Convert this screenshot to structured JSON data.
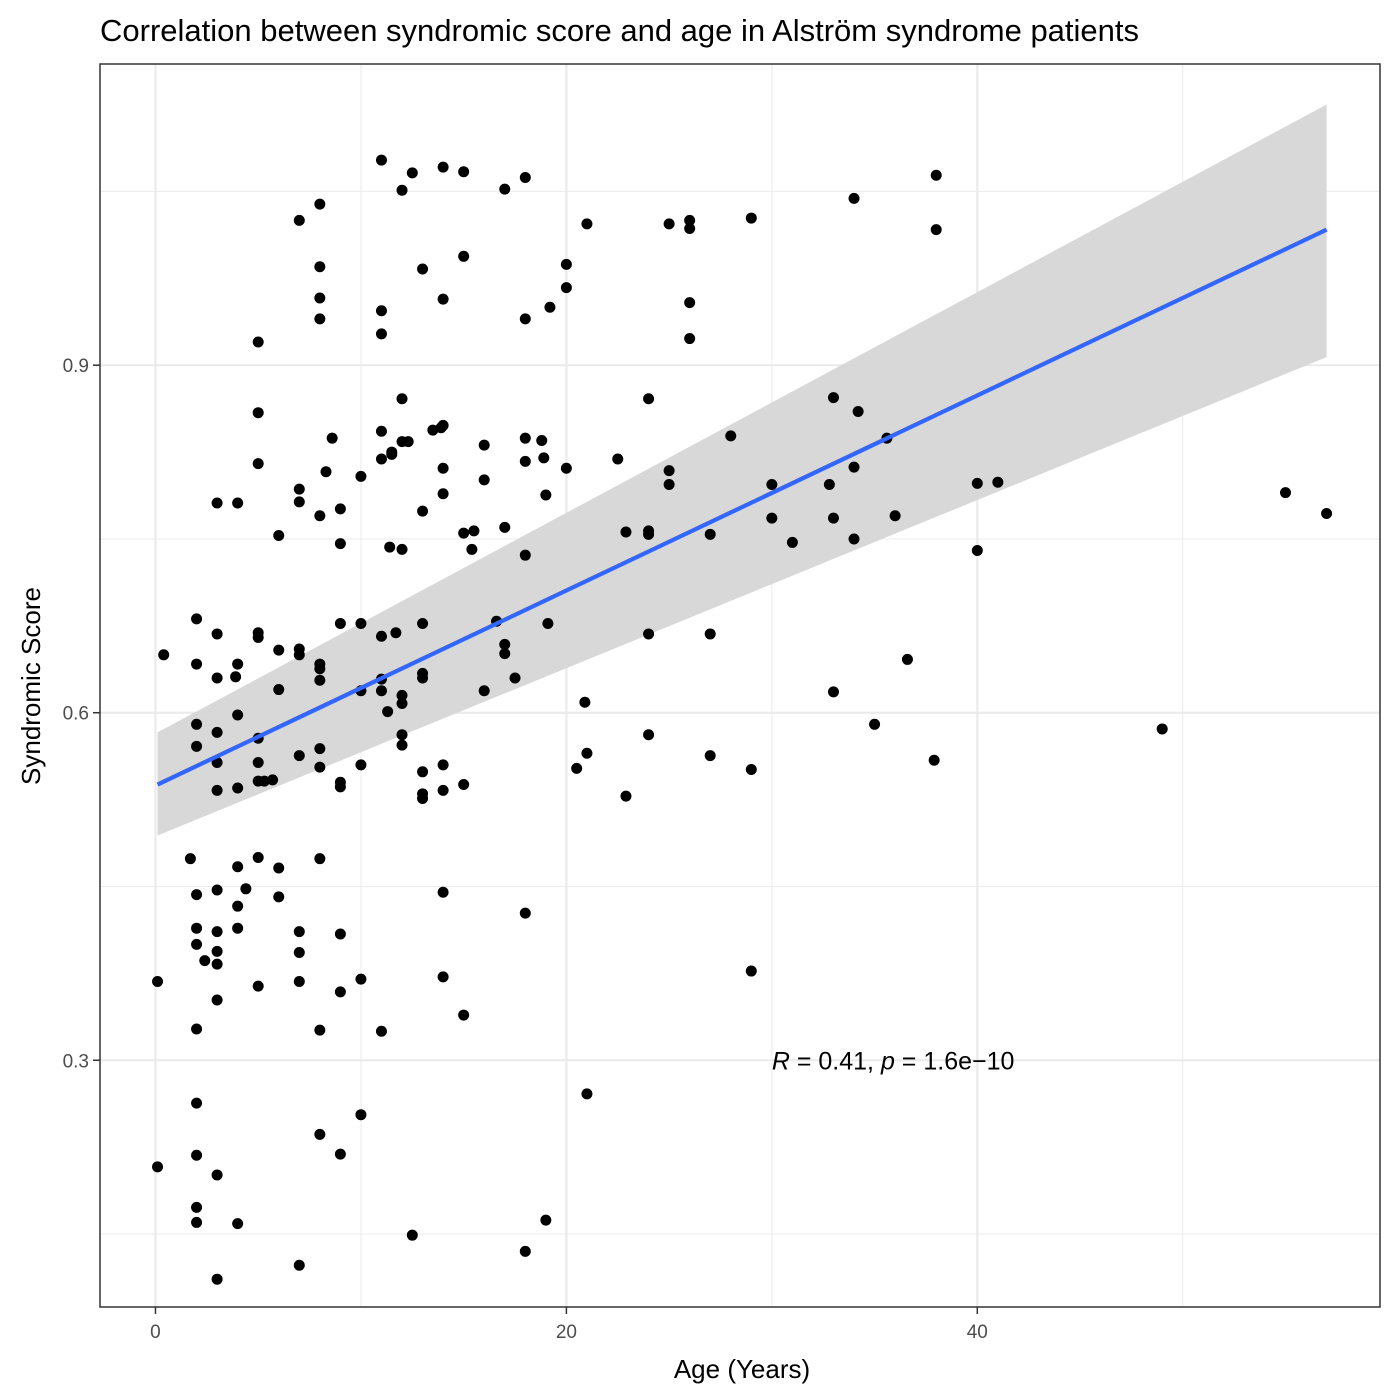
{
  "chart_data": {
    "type": "scatter",
    "title": "Correlation between syndromic score and age in Alström syndrome patients",
    "xlabel": "Age (Years)",
    "ylabel": "Syndromic Score",
    "xlim": [
      -2.7,
      59.6
    ],
    "ylim": [
      0.087,
      1.16
    ],
    "x_ticks": [
      0,
      20,
      40
    ],
    "x_tick_labels": [
      "0",
      "20",
      "40"
    ],
    "y_ticks": [
      0.3,
      0.6,
      0.9
    ],
    "y_tick_labels": [
      "0.3",
      "0.6",
      "0.9"
    ],
    "grid": true,
    "legend": "none",
    "annotation": {
      "r_symbol": "R",
      "r_text": " = 0.41, ",
      "p_symbol": "p",
      "p_text": " = 1.6e−10",
      "x": 30,
      "y": 0.3
    },
    "colors": {
      "points": "#000000",
      "regression_line": "#3366ff",
      "confidence_band": "#d6d6d6",
      "grid": "#ebebeb",
      "panel_border": "#333333"
    },
    "regression": {
      "method": "linear",
      "x_start": 0.1,
      "x_end": 57.0,
      "y_start": 0.538,
      "y_end": 1.017,
      "ci_lower_start": 0.494,
      "ci_upper_start": 0.583,
      "ci_lower_end": 0.907,
      "ci_upper_end": 1.125
    },
    "points": [
      {
        "x": 0.1,
        "y": 0.368
      },
      {
        "x": 0.1,
        "y": 0.208
      },
      {
        "x": 0.4,
        "y": 0.65
      },
      {
        "x": 1.7,
        "y": 0.474
      },
      {
        "x": 2.0,
        "y": 0.681
      },
      {
        "x": 2.0,
        "y": 0.642
      },
      {
        "x": 2.0,
        "y": 0.59
      },
      {
        "x": 2.0,
        "y": 0.571
      },
      {
        "x": 2.0,
        "y": 0.443
      },
      {
        "x": 2.0,
        "y": 0.414
      },
      {
        "x": 2.0,
        "y": 0.4
      },
      {
        "x": 2.0,
        "y": 0.327
      },
      {
        "x": 2.0,
        "y": 0.263
      },
      {
        "x": 2.0,
        "y": 0.218
      },
      {
        "x": 2.0,
        "y": 0.173
      },
      {
        "x": 2.0,
        "y": 0.16
      },
      {
        "x": 2.4,
        "y": 0.386
      },
      {
        "x": 3.0,
        "y": 0.781
      },
      {
        "x": 3.0,
        "y": 0.668
      },
      {
        "x": 3.0,
        "y": 0.63
      },
      {
        "x": 3.0,
        "y": 0.583
      },
      {
        "x": 3.0,
        "y": 0.557
      },
      {
        "x": 3.0,
        "y": 0.533
      },
      {
        "x": 3.0,
        "y": 0.447
      },
      {
        "x": 3.0,
        "y": 0.411
      },
      {
        "x": 3.0,
        "y": 0.394
      },
      {
        "x": 3.0,
        "y": 0.383
      },
      {
        "x": 3.0,
        "y": 0.352
      },
      {
        "x": 3.0,
        "y": 0.201
      },
      {
        "x": 3.0,
        "y": 0.111
      },
      {
        "x": 3.9,
        "y": 0.631
      },
      {
        "x": 4.0,
        "y": 0.781
      },
      {
        "x": 4.0,
        "y": 0.642
      },
      {
        "x": 4.0,
        "y": 0.598
      },
      {
        "x": 4.0,
        "y": 0.535
      },
      {
        "x": 4.0,
        "y": 0.467
      },
      {
        "x": 4.0,
        "y": 0.433
      },
      {
        "x": 4.0,
        "y": 0.414
      },
      {
        "x": 4.0,
        "y": 0.159
      },
      {
        "x": 4.4,
        "y": 0.448
      },
      {
        "x": 5.0,
        "y": 0.92
      },
      {
        "x": 5.0,
        "y": 0.859
      },
      {
        "x": 5.0,
        "y": 0.815
      },
      {
        "x": 5.0,
        "y": 0.669
      },
      {
        "x": 5.0,
        "y": 0.665
      },
      {
        "x": 5.0,
        "y": 0.578
      },
      {
        "x": 5.0,
        "y": 0.557
      },
      {
        "x": 5.0,
        "y": 0.541
      },
      {
        "x": 5.0,
        "y": 0.475
      },
      {
        "x": 5.0,
        "y": 0.364
      },
      {
        "x": 5.3,
        "y": 0.541
      },
      {
        "x": 5.7,
        "y": 0.542
      },
      {
        "x": 6.0,
        "y": 0.753
      },
      {
        "x": 6.0,
        "y": 0.654
      },
      {
        "x": 6.0,
        "y": 0.62
      },
      {
        "x": 6.0,
        "y": 0.466
      },
      {
        "x": 6.0,
        "y": 0.441
      },
      {
        "x": 7.0,
        "y": 1.025
      },
      {
        "x": 7.0,
        "y": 0.793
      },
      {
        "x": 7.0,
        "y": 0.782
      },
      {
        "x": 7.0,
        "y": 0.655
      },
      {
        "x": 7.0,
        "y": 0.65
      },
      {
        "x": 7.0,
        "y": 0.563
      },
      {
        "x": 7.0,
        "y": 0.411
      },
      {
        "x": 7.0,
        "y": 0.393
      },
      {
        "x": 7.0,
        "y": 0.368
      },
      {
        "x": 7.0,
        "y": 0.123
      },
      {
        "x": 8.0,
        "y": 1.039
      },
      {
        "x": 8.0,
        "y": 0.985
      },
      {
        "x": 8.0,
        "y": 0.958
      },
      {
        "x": 8.0,
        "y": 0.94
      },
      {
        "x": 8.0,
        "y": 0.77
      },
      {
        "x": 8.0,
        "y": 0.642
      },
      {
        "x": 8.0,
        "y": 0.638
      },
      {
        "x": 8.0,
        "y": 0.628
      },
      {
        "x": 8.0,
        "y": 0.569
      },
      {
        "x": 8.0,
        "y": 0.553
      },
      {
        "x": 8.0,
        "y": 0.474
      },
      {
        "x": 8.0,
        "y": 0.326
      },
      {
        "x": 8.0,
        "y": 0.236
      },
      {
        "x": 8.3,
        "y": 0.808
      },
      {
        "x": 8.6,
        "y": 0.837
      },
      {
        "x": 9.0,
        "y": 0.776
      },
      {
        "x": 9.0,
        "y": 0.746
      },
      {
        "x": 9.0,
        "y": 0.677
      },
      {
        "x": 9.0,
        "y": 0.54
      },
      {
        "x": 9.0,
        "y": 0.536
      },
      {
        "x": 9.0,
        "y": 0.409
      },
      {
        "x": 9.0,
        "y": 0.359
      },
      {
        "x": 9.0,
        "y": 0.219
      },
      {
        "x": 10.0,
        "y": 0.804
      },
      {
        "x": 10.0,
        "y": 0.677
      },
      {
        "x": 10.0,
        "y": 0.619
      },
      {
        "x": 10.0,
        "y": 0.555
      },
      {
        "x": 10.0,
        "y": 0.37
      },
      {
        "x": 10.0,
        "y": 0.253
      },
      {
        "x": 11.0,
        "y": 1.077
      },
      {
        "x": 11.0,
        "y": 0.947
      },
      {
        "x": 11.0,
        "y": 0.927
      },
      {
        "x": 11.0,
        "y": 0.843
      },
      {
        "x": 11.0,
        "y": 0.819
      },
      {
        "x": 11.0,
        "y": 0.666
      },
      {
        "x": 11.0,
        "y": 0.629
      },
      {
        "x": 11.0,
        "y": 0.619
      },
      {
        "x": 11.0,
        "y": 0.325
      },
      {
        "x": 11.3,
        "y": 0.601
      },
      {
        "x": 11.4,
        "y": 0.743
      },
      {
        "x": 11.5,
        "y": 0.825
      },
      {
        "x": 11.5,
        "y": 0.823
      },
      {
        "x": 11.7,
        "y": 0.669
      },
      {
        "x": 12.0,
        "y": 1.051
      },
      {
        "x": 12.0,
        "y": 0.871
      },
      {
        "x": 12.0,
        "y": 0.834
      },
      {
        "x": 12.0,
        "y": 0.741
      },
      {
        "x": 12.0,
        "y": 0.615
      },
      {
        "x": 12.0,
        "y": 0.608
      },
      {
        "x": 12.0,
        "y": 0.581
      },
      {
        "x": 12.0,
        "y": 0.572
      },
      {
        "x": 12.3,
        "y": 0.834
      },
      {
        "x": 12.5,
        "y": 1.066
      },
      {
        "x": 12.5,
        "y": 0.149
      },
      {
        "x": 13.0,
        "y": 0.983
      },
      {
        "x": 13.0,
        "y": 0.774
      },
      {
        "x": 13.0,
        "y": 0.677
      },
      {
        "x": 13.0,
        "y": 0.634
      },
      {
        "x": 13.0,
        "y": 0.63
      },
      {
        "x": 13.0,
        "y": 0.549
      },
      {
        "x": 13.0,
        "y": 0.53
      },
      {
        "x": 13.0,
        "y": 0.526
      },
      {
        "x": 13.5,
        "y": 0.844
      },
      {
        "x": 13.9,
        "y": 0.846
      },
      {
        "x": 14.0,
        "y": 1.071
      },
      {
        "x": 14.0,
        "y": 0.957
      },
      {
        "x": 14.0,
        "y": 0.848
      },
      {
        "x": 14.0,
        "y": 0.811
      },
      {
        "x": 14.0,
        "y": 0.789
      },
      {
        "x": 14.0,
        "y": 0.555
      },
      {
        "x": 14.0,
        "y": 0.533
      },
      {
        "x": 14.0,
        "y": 0.445
      },
      {
        "x": 14.0,
        "y": 0.372
      },
      {
        "x": 15.0,
        "y": 1.067
      },
      {
        "x": 15.0,
        "y": 0.994
      },
      {
        "x": 15.0,
        "y": 0.755
      },
      {
        "x": 15.0,
        "y": 0.538
      },
      {
        "x": 15.0,
        "y": 0.339
      },
      {
        "x": 15.4,
        "y": 0.741
      },
      {
        "x": 15.5,
        "y": 0.757
      },
      {
        "x": 16.0,
        "y": 0.831
      },
      {
        "x": 16.0,
        "y": 0.801
      },
      {
        "x": 16.0,
        "y": 0.619
      },
      {
        "x": 16.6,
        "y": 0.679
      },
      {
        "x": 17.0,
        "y": 1.052
      },
      {
        "x": 17.0,
        "y": 0.76
      },
      {
        "x": 17.0,
        "y": 0.659
      },
      {
        "x": 17.0,
        "y": 0.651
      },
      {
        "x": 17.5,
        "y": 0.63
      },
      {
        "x": 18.0,
        "y": 1.062
      },
      {
        "x": 18.0,
        "y": 0.94
      },
      {
        "x": 18.0,
        "y": 0.837
      },
      {
        "x": 18.0,
        "y": 0.817
      },
      {
        "x": 18.0,
        "y": 0.736
      },
      {
        "x": 18.0,
        "y": 0.427
      },
      {
        "x": 18.0,
        "y": 0.135
      },
      {
        "x": 18.8,
        "y": 0.835
      },
      {
        "x": 18.9,
        "y": 0.82
      },
      {
        "x": 19.0,
        "y": 0.788
      },
      {
        "x": 19.0,
        "y": 0.162
      },
      {
        "x": 19.1,
        "y": 0.677
      },
      {
        "x": 19.2,
        "y": 0.95
      },
      {
        "x": 20.0,
        "y": 0.987
      },
      {
        "x": 20.0,
        "y": 0.967
      },
      {
        "x": 20.0,
        "y": 0.811
      },
      {
        "x": 20.5,
        "y": 0.552
      },
      {
        "x": 20.9,
        "y": 0.609
      },
      {
        "x": 21.0,
        "y": 1.022
      },
      {
        "x": 21.0,
        "y": 0.565
      },
      {
        "x": 21.0,
        "y": 0.271
      },
      {
        "x": 22.5,
        "y": 0.819
      },
      {
        "x": 22.9,
        "y": 0.756
      },
      {
        "x": 22.9,
        "y": 0.528
      },
      {
        "x": 24.0,
        "y": 0.871
      },
      {
        "x": 24.0,
        "y": 0.757
      },
      {
        "x": 24.0,
        "y": 0.754
      },
      {
        "x": 24.0,
        "y": 0.668
      },
      {
        "x": 24.0,
        "y": 0.581
      },
      {
        "x": 25.0,
        "y": 1.022
      },
      {
        "x": 25.0,
        "y": 0.809
      },
      {
        "x": 25.0,
        "y": 0.797
      },
      {
        "x": 26.0,
        "y": 1.025
      },
      {
        "x": 26.0,
        "y": 1.018
      },
      {
        "x": 26.0,
        "y": 0.954
      },
      {
        "x": 26.0,
        "y": 0.923
      },
      {
        "x": 27.0,
        "y": 0.754
      },
      {
        "x": 27.0,
        "y": 0.668
      },
      {
        "x": 27.0,
        "y": 0.563
      },
      {
        "x": 28.0,
        "y": 0.839
      },
      {
        "x": 29.0,
        "y": 1.027
      },
      {
        "x": 29.0,
        "y": 0.551
      },
      {
        "x": 29.0,
        "y": 0.377
      },
      {
        "x": 30.0,
        "y": 0.797
      },
      {
        "x": 30.0,
        "y": 0.768
      },
      {
        "x": 31.0,
        "y": 0.747
      },
      {
        "x": 32.8,
        "y": 0.797
      },
      {
        "x": 33.0,
        "y": 0.872
      },
      {
        "x": 33.0,
        "y": 0.768
      },
      {
        "x": 33.0,
        "y": 0.618
      },
      {
        "x": 34.0,
        "y": 1.044
      },
      {
        "x": 34.0,
        "y": 0.812
      },
      {
        "x": 34.0,
        "y": 0.75
      },
      {
        "x": 34.2,
        "y": 0.86
      },
      {
        "x": 35.0,
        "y": 0.59
      },
      {
        "x": 35.6,
        "y": 0.837
      },
      {
        "x": 36.0,
        "y": 0.77
      },
      {
        "x": 36.6,
        "y": 0.646
      },
      {
        "x": 37.9,
        "y": 0.559
      },
      {
        "x": 38.0,
        "y": 1.064
      },
      {
        "x": 38.0,
        "y": 1.017
      },
      {
        "x": 40.0,
        "y": 0.798
      },
      {
        "x": 40.0,
        "y": 0.74
      },
      {
        "x": 41.0,
        "y": 0.799
      },
      {
        "x": 49.0,
        "y": 0.586
      },
      {
        "x": 55.0,
        "y": 0.79
      },
      {
        "x": 57.0,
        "y": 0.772
      }
    ]
  }
}
